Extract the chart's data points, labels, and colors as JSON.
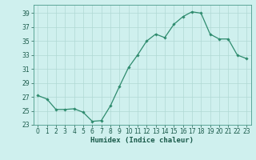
{
  "x": [
    0,
    1,
    2,
    3,
    4,
    5,
    6,
    7,
    8,
    9,
    10,
    11,
    12,
    13,
    14,
    15,
    16,
    17,
    18,
    19,
    20,
    21,
    22,
    23
  ],
  "y": [
    27.2,
    26.7,
    25.2,
    25.2,
    25.3,
    24.8,
    23.5,
    23.6,
    25.7,
    28.5,
    31.2,
    33.0,
    35.0,
    36.0,
    35.5,
    37.4,
    38.5,
    39.2,
    39.0,
    36.0,
    35.3,
    35.3,
    33.0,
    32.5
  ],
  "line_color": "#2e8b6e",
  "marker_color": "#2e8b6e",
  "bg_color": "#cff0ee",
  "grid_color": "#b0d8d4",
  "axis_label": "Humidex (Indice chaleur)",
  "ylim": [
    23,
    40
  ],
  "xlim": [
    -0.5,
    23.5
  ],
  "yticks": [
    23,
    25,
    27,
    29,
    31,
    33,
    35,
    37,
    39
  ],
  "xticks": [
    0,
    1,
    2,
    3,
    4,
    5,
    6,
    7,
    8,
    9,
    10,
    11,
    12,
    13,
    14,
    15,
    16,
    17,
    18,
    19,
    20,
    21,
    22,
    23
  ],
  "axis_fontsize": 6.5,
  "tick_fontsize": 5.5
}
